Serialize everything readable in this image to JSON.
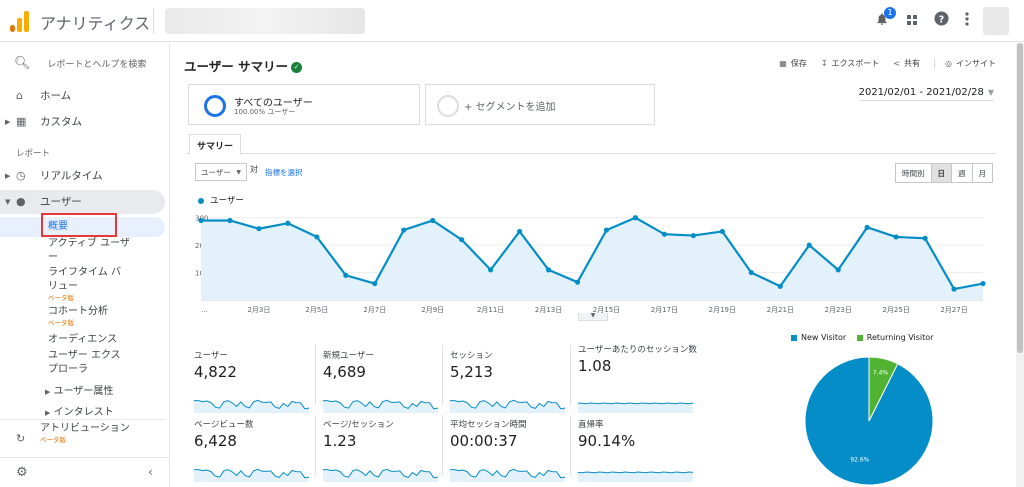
{
  "app": {
    "name": "アナリティクス",
    "notification_count": "1"
  },
  "sidebar": {
    "search_label": "レポートとヘルプを検索",
    "home": "ホーム",
    "custom": "カスタム",
    "section_reports": "レポート",
    "realtime": "リアルタイム",
    "users": "ユーザー",
    "sub": {
      "overview": "概要",
      "active_users": "アクティブ ユーザー",
      "lifetime_value": "ライフタイム バリュー",
      "lifetime_beta": "ベータ版",
      "cohort": "コホート分析",
      "cohort_beta": "ベータ版",
      "audience": "オーディエンス",
      "user_explorer": "ユーザー エクスプローラ",
      "demographics": "ユーザー属性",
      "interests": "インタレスト"
    },
    "attribution": "アトリビューション",
    "attribution_beta": "ベータ版"
  },
  "header": {
    "title": "ユーザー サマリー",
    "actions": {
      "save": "保存",
      "export": "エクスポート",
      "share": "共有",
      "insights": "インサイト"
    }
  },
  "segments": {
    "all_users": "すべてのユーザー",
    "all_users_pct": "100.00% ユーザー",
    "add_segment": "+ セグメントを追加"
  },
  "date_range": "2021/02/01 - 2021/02/28",
  "tabs": {
    "summary": "サマリー"
  },
  "controls": {
    "metric": "ユーザー",
    "vs": "対",
    "choose_metric": "指標を選択",
    "periods": [
      "時間別",
      "日",
      "週",
      "月"
    ],
    "active_period": "日"
  },
  "chart_data": {
    "type": "area",
    "series": [
      {
        "name": "ユーザー",
        "values": [
          290,
          290,
          260,
          280,
          230,
          90,
          60,
          255,
          290,
          220,
          110,
          250,
          110,
          65,
          255,
          300,
          240,
          235,
          250,
          100,
          50,
          200,
          110,
          265,
          230,
          225,
          40,
          60
        ]
      }
    ],
    "x": [
      "2/1",
      "2/2",
      "2/3",
      "2/4",
      "2/5",
      "2/6",
      "2/7",
      "2/8",
      "2/9",
      "2/10",
      "2/11",
      "2/12",
      "2/13",
      "2/14",
      "2/15",
      "2/16",
      "2/17",
      "2/18",
      "2/19",
      "2/20",
      "2/21",
      "2/22",
      "2/23",
      "2/24",
      "2/25",
      "2/26",
      "2/27",
      "2/28"
    ],
    "x_tick_labels": [
      "...",
      "2月3日",
      "2月5日",
      "2月7日",
      "2月9日",
      "2月11日",
      "2月13日",
      "2月15日",
      "2月17日",
      "2月19日",
      "2月21日",
      "2月23日",
      "2月25日",
      "2月27日"
    ],
    "y_ticks": [
      "300",
      "200",
      "100"
    ],
    "ylim": [
      0,
      310
    ],
    "color": "#058dc7",
    "fill": "#e3f2fa",
    "grid": true
  },
  "stats": [
    {
      "label": "ユーザー",
      "value": "4,822"
    },
    {
      "label": "新規ユーザー",
      "value": "4,689"
    },
    {
      "label": "セッション",
      "value": "5,213"
    },
    {
      "label": "ユーザーあたりのセッション数",
      "value": "1.08"
    },
    {
      "label": "ページビュー数",
      "value": "6,428"
    },
    {
      "label": "ページ/セッション",
      "value": "1.23"
    },
    {
      "label": "平均セッション時間",
      "value": "00:00:37"
    },
    {
      "label": "直帰率",
      "value": "90.14%"
    }
  ],
  "pie": {
    "legend": [
      {
        "name": "New Visitor",
        "color": "#058dc7"
      },
      {
        "name": "Returning Visitor",
        "color": "#50b432"
      }
    ],
    "slices": [
      {
        "name": "New Visitor",
        "value": 92.6,
        "label": "92.6%"
      },
      {
        "name": "Returning Visitor",
        "value": 7.4,
        "label": "7.4%"
      }
    ]
  }
}
